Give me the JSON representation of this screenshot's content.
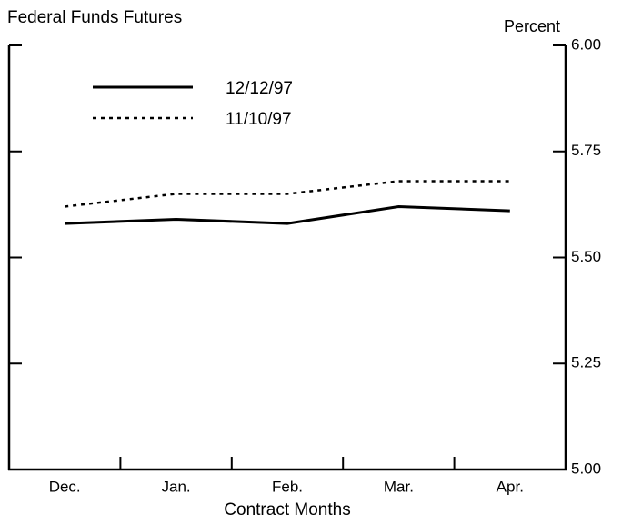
{
  "chart_data": {
    "type": "line",
    "title": "Federal Funds Futures",
    "y_axis_label": "Percent",
    "x_axis_label": "Contract Months",
    "categories": [
      "Dec.",
      "Jan.",
      "Feb.",
      "Mar.",
      "Apr."
    ],
    "series": [
      {
        "name": "12/12/97",
        "color": "#000000",
        "style": "solid",
        "values": [
          5.58,
          5.59,
          5.58,
          5.62,
          5.61
        ]
      },
      {
        "name": "11/10/97",
        "color": "#000000",
        "style": "dotted",
        "values": [
          5.62,
          5.65,
          5.65,
          5.68,
          5.68
        ]
      }
    ],
    "ylim": [
      5,
      6
    ],
    "yticks": [
      {
        "value": 5,
        "label": "5.00"
      },
      {
        "value": 5.25,
        "label": "5.25"
      },
      {
        "value": 5.5,
        "label": "5.50"
      },
      {
        "value": 5.75,
        "label": "5.75"
      },
      {
        "value": 6,
        "label": "6.00"
      }
    ],
    "grid": false
  }
}
